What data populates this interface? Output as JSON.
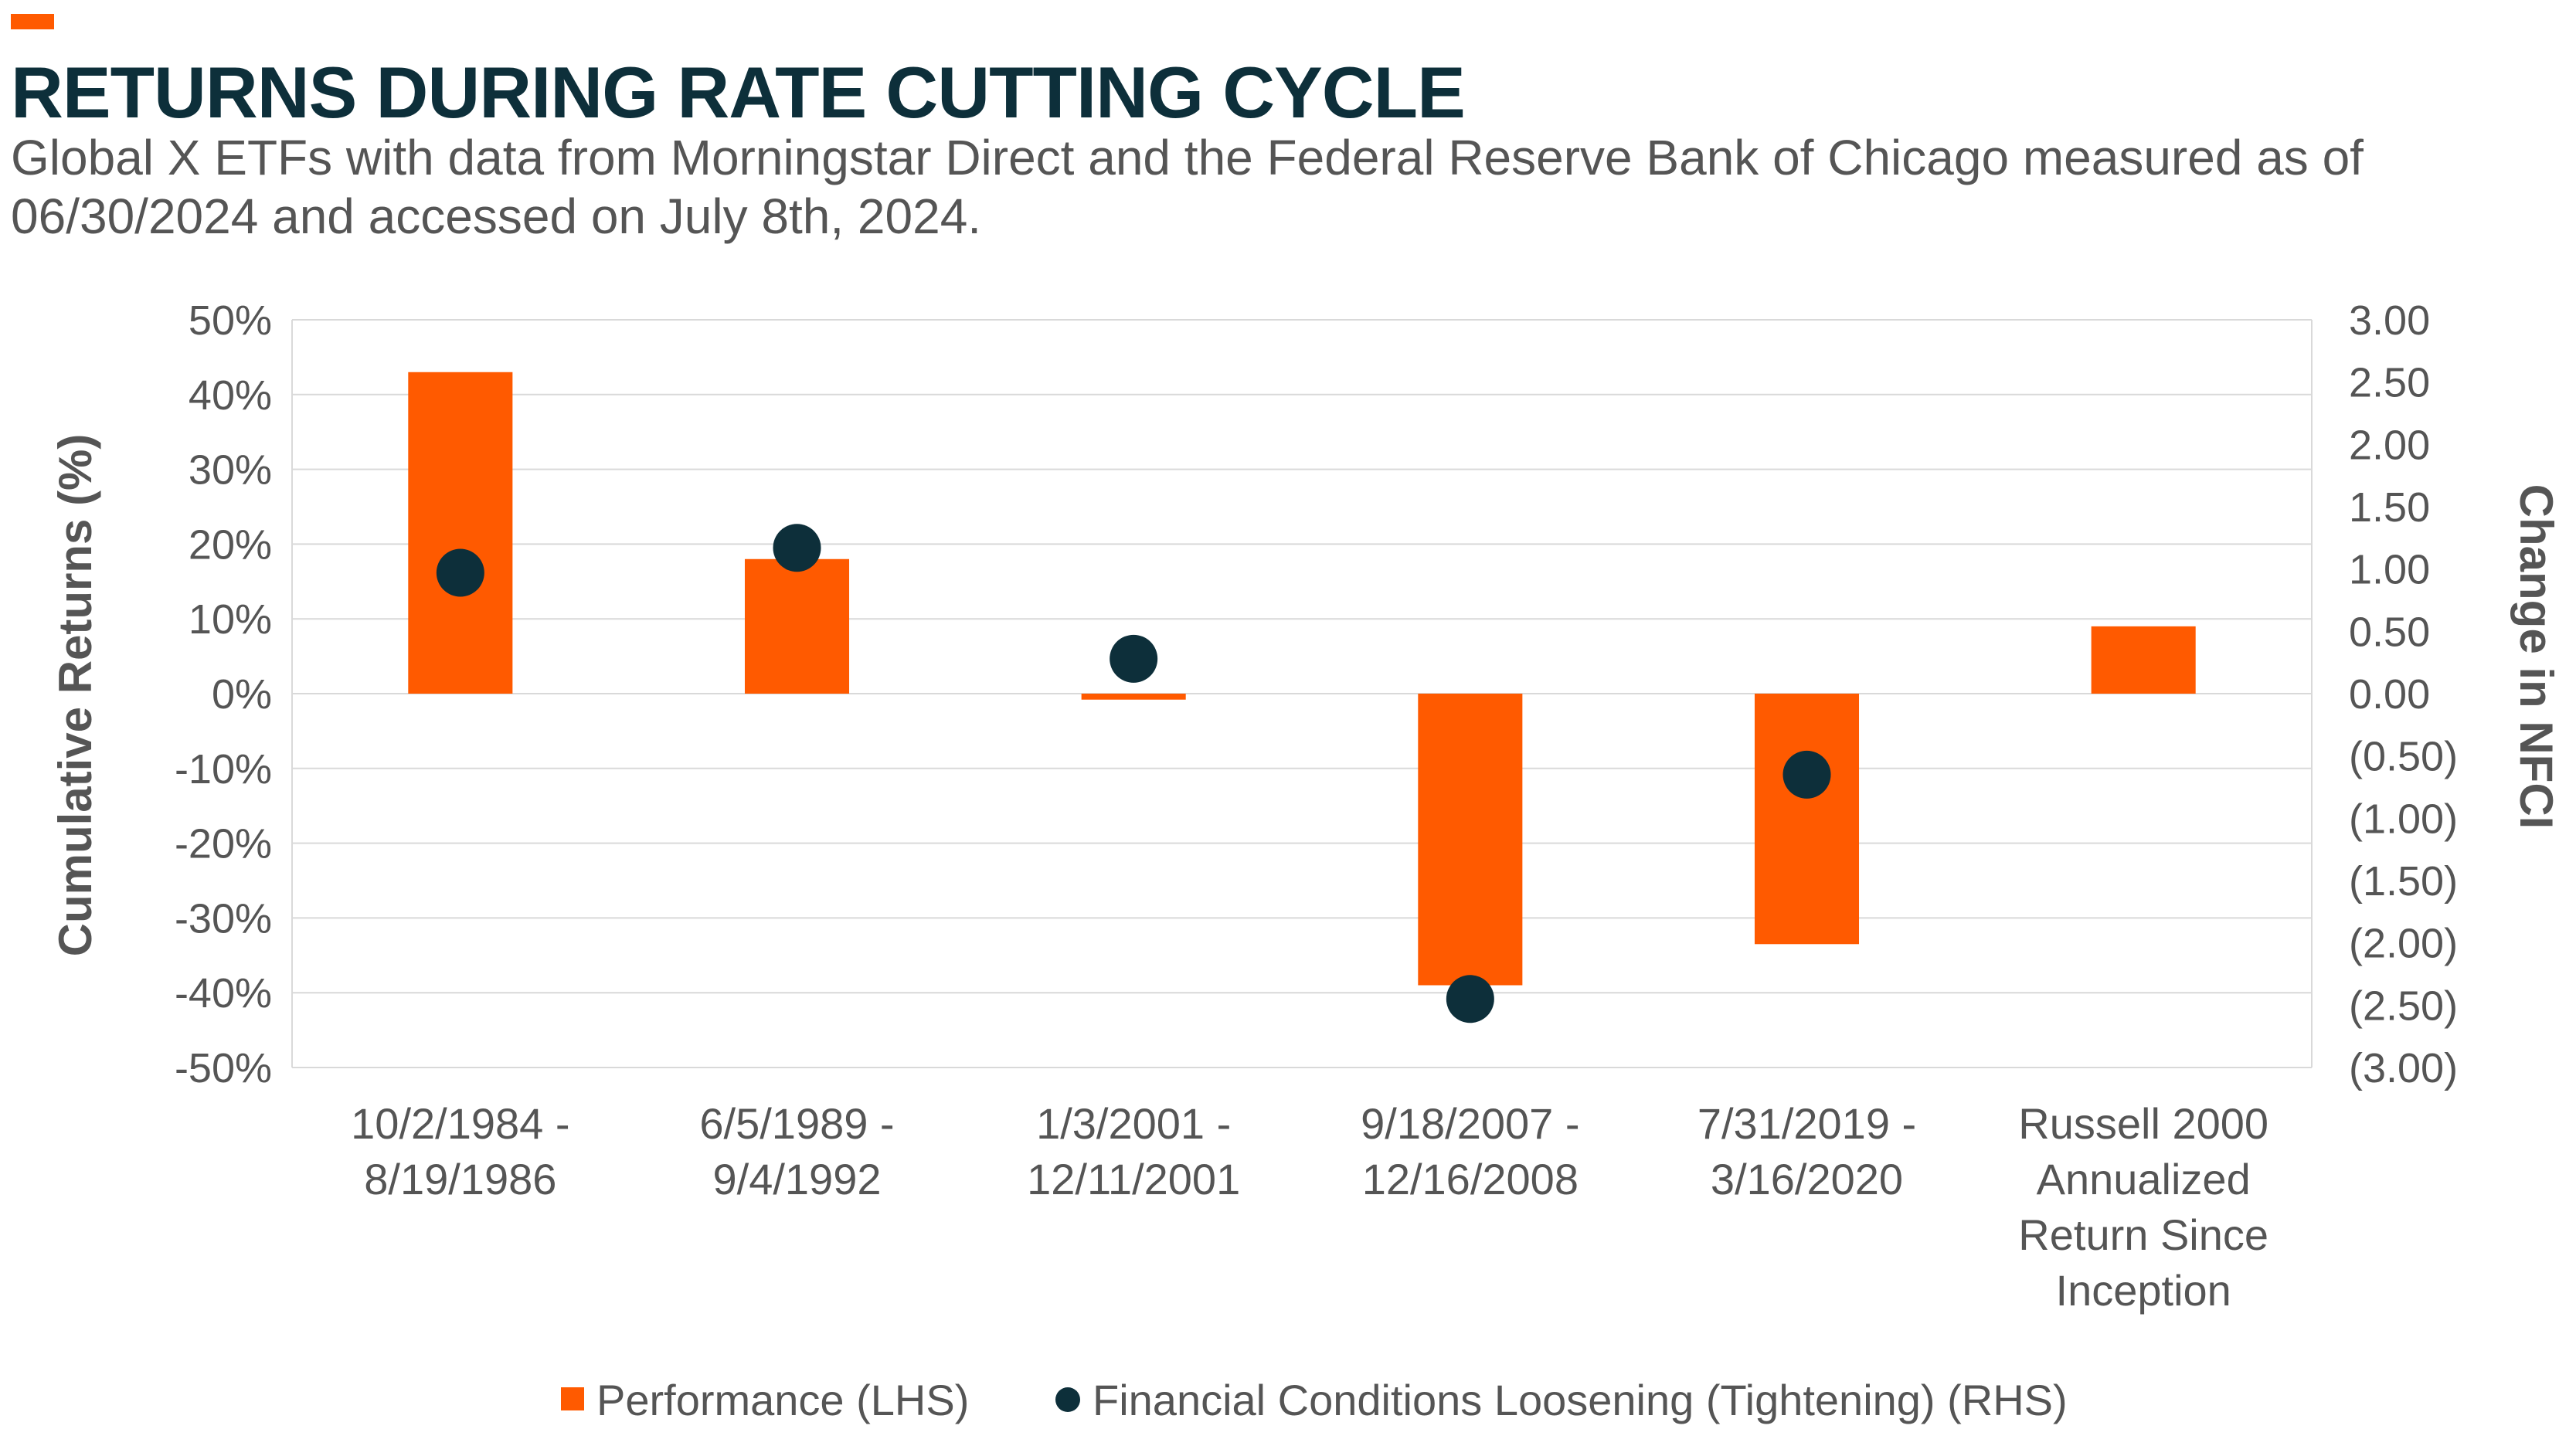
{
  "header": {
    "title": "RETURNS DURING RATE CUTTING CYCLE",
    "subtitle": "Global X ETFs with data from Morningstar Direct and the Federal Reserve Bank of Chicago measured as of 06/30/2024 and accessed on July 8th, 2024."
  },
  "colors": {
    "accent": "#ff5a00",
    "bar": "#ff5a00",
    "dot": "#0d2f3a",
    "title": "#0d2f3a",
    "text": "#555555",
    "grid": "#d9d9d9"
  },
  "chart_data": {
    "type": "bar",
    "title": "RETURNS DURING RATE CUTTING CYCLE",
    "categories": [
      [
        "10/2/1984 -",
        "8/19/1986"
      ],
      [
        "6/5/1989 -",
        "9/4/1992"
      ],
      [
        "1/3/2001 -",
        "12/11/2001"
      ],
      [
        "9/18/2007 -",
        "12/16/2008"
      ],
      [
        "7/31/2019 -",
        "3/16/2020"
      ],
      [
        "Russell 2000",
        "Annualized",
        "Return Since",
        "Inception"
      ]
    ],
    "series": [
      {
        "name": "Performance (LHS)",
        "type": "bar",
        "axis": "left",
        "values": [
          43,
          18,
          -0.8,
          -39,
          -33.5,
          9
        ]
      },
      {
        "name": "Financial Conditions Loosening (Tightening) (RHS)",
        "type": "scatter",
        "axis": "right",
        "values": [
          0.97,
          1.17,
          0.28,
          -2.45,
          -0.65,
          null
        ]
      }
    ],
    "left_axis": {
      "label": "Cumulative Returns (%)",
      "range": [
        -50,
        50
      ],
      "ticks": [
        50,
        40,
        30,
        20,
        10,
        0,
        -10,
        -20,
        -30,
        -40,
        -50
      ],
      "tick_labels": [
        "50%",
        "40%",
        "30%",
        "20%",
        "10%",
        "0%",
        "-10%",
        "-20%",
        "-30%",
        "-40%",
        "-50%"
      ]
    },
    "right_axis": {
      "label": "Change in NFCI",
      "range": [
        -3,
        3
      ],
      "ticks": [
        3,
        2.5,
        2,
        1.5,
        1,
        0.5,
        0,
        -0.5,
        -1,
        -1.5,
        -2,
        -2.5,
        -3
      ],
      "tick_labels": [
        "3.00",
        "2.50",
        "2.00",
        "1.50",
        "1.00",
        "0.50",
        "0.00",
        "(0.50)",
        "(1.00)",
        "(1.50)",
        "(2.00)",
        "(2.50)",
        "(3.00)"
      ]
    },
    "grid": true,
    "legend_position": "bottom"
  }
}
